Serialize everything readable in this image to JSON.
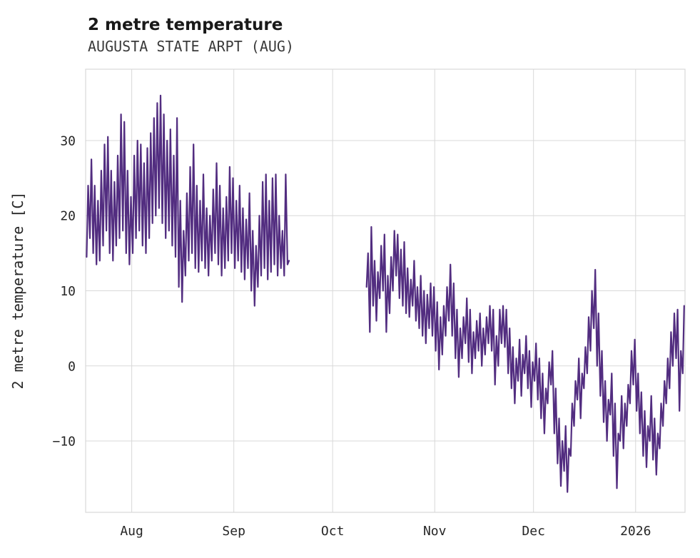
{
  "chart_data": {
    "type": "line",
    "title": "2 metre temperature",
    "subtitle": "AUGUSTA STATE ARPT (AUG)",
    "ylabel": "2 metre temperature [C]",
    "line_color": "#522d80",
    "grid_color": "#d8d8d8",
    "background": "#ffffff",
    "legend": "none",
    "grid": "on",
    "xlim": [
      0,
      182
    ],
    "ylim": [
      -19.5,
      39.5
    ],
    "x_ticks": [
      {
        "x": 14,
        "label": "Aug"
      },
      {
        "x": 45,
        "label": "Sep"
      },
      {
        "x": 75,
        "label": "Oct"
      },
      {
        "x": 106,
        "label": "Nov"
      },
      {
        "x": 136,
        "label": "Dec"
      },
      {
        "x": 167,
        "label": "2026"
      }
    ],
    "y_ticks": [
      {
        "v": 30,
        "label": "30"
      },
      {
        "v": 20,
        "label": "20"
      },
      {
        "v": 10,
        "label": "10"
      },
      {
        "v": 0,
        "label": "0"
      },
      {
        "v": -10,
        "label": "−10"
      }
    ],
    "segments": [
      {
        "start_day": 0,
        "daily_min_max": [
          [
            14.5,
            24
          ],
          [
            17,
            27.5
          ],
          [
            15,
            24
          ],
          [
            13.5,
            22
          ],
          [
            14,
            26
          ],
          [
            16,
            29.5
          ],
          [
            18,
            30.5
          ],
          [
            15,
            26
          ],
          [
            14,
            24.5
          ],
          [
            16,
            28
          ],
          [
            17,
            33.5
          ],
          [
            18,
            32.5
          ],
          [
            15,
            26
          ],
          [
            13.5,
            22.5
          ],
          [
            15,
            28
          ],
          [
            17,
            30
          ],
          [
            18,
            29.5
          ],
          [
            16,
            27
          ],
          [
            15,
            29
          ],
          [
            17,
            31
          ],
          [
            19,
            33
          ],
          [
            20,
            35
          ],
          [
            21,
            36
          ],
          [
            19,
            33.5
          ],
          [
            17,
            30
          ],
          [
            18,
            31.5
          ],
          [
            16,
            28
          ],
          [
            14.5,
            33
          ],
          [
            10.5,
            22
          ],
          [
            8.5,
            18
          ],
          [
            12,
            23
          ],
          [
            14,
            26.5
          ],
          [
            15,
            29.5
          ],
          [
            13,
            24
          ],
          [
            12.5,
            22
          ],
          [
            14,
            25.5
          ],
          [
            13,
            21
          ],
          [
            12,
            20
          ],
          [
            14,
            23.5
          ],
          [
            15,
            27
          ],
          [
            13.5,
            24
          ],
          [
            12,
            21
          ],
          [
            13,
            22.5
          ],
          [
            14,
            26.5
          ],
          [
            15,
            25
          ],
          [
            13,
            22
          ],
          [
            14,
            24
          ],
          [
            12.5,
            21
          ],
          [
            11.5,
            19.5
          ],
          [
            13,
            23
          ],
          [
            10,
            18
          ],
          [
            8,
            16
          ],
          [
            10.5,
            20
          ],
          [
            12,
            24.5
          ],
          [
            13,
            25.5
          ],
          [
            11.5,
            22
          ],
          [
            12.5,
            25
          ],
          [
            13.5,
            25.5
          ],
          [
            12,
            20
          ],
          [
            13,
            18
          ],
          [
            12,
            25.5
          ],
          [
            13.5,
            14
          ]
        ]
      },
      {
        "start_day": 85,
        "daily_min_max": [
          [
            10.5,
            15
          ],
          [
            4.5,
            18.5
          ],
          [
            8,
            14
          ],
          [
            6,
            12.5
          ],
          [
            9,
            16
          ],
          [
            10,
            17.5
          ],
          [
            4.5,
            12
          ],
          [
            7,
            14.5
          ],
          [
            10,
            18
          ],
          [
            12,
            17.5
          ],
          [
            9,
            15.5
          ],
          [
            8,
            16.5
          ],
          [
            7,
            13
          ],
          [
            6.5,
            11.5
          ],
          [
            8,
            14
          ],
          [
            6,
            10.5
          ],
          [
            5,
            12
          ],
          [
            4,
            10
          ],
          [
            3,
            9.5
          ],
          [
            5,
            11
          ],
          [
            4,
            10.5
          ],
          [
            2,
            8.5
          ],
          [
            -0.5,
            6.5
          ],
          [
            1.5,
            8
          ],
          [
            4,
            10.5
          ],
          [
            6,
            13.5
          ],
          [
            4,
            11
          ],
          [
            1,
            7.5
          ],
          [
            -1.5,
            5
          ],
          [
            1,
            6.5
          ],
          [
            3,
            9
          ],
          [
            0.5,
            7.5
          ],
          [
            -1,
            4.5
          ],
          [
            1,
            6
          ],
          [
            2,
            7
          ],
          [
            0,
            5
          ],
          [
            1.5,
            6.5
          ],
          [
            3,
            8
          ],
          [
            2,
            7.5
          ],
          [
            -2.5,
            4
          ],
          [
            0,
            7.5
          ],
          [
            3,
            8
          ],
          [
            2.5,
            7.5
          ],
          [
            -1,
            5
          ],
          [
            -3,
            2.5
          ],
          [
            -5,
            1
          ],
          [
            -2,
            3.5
          ],
          [
            -4,
            1.5
          ],
          [
            -1,
            4
          ],
          [
            -3,
            2
          ],
          [
            -5.5,
            0.5
          ],
          [
            -2,
            3
          ],
          [
            -4.5,
            1
          ],
          [
            -7,
            -1
          ],
          [
            -9,
            -3
          ],
          [
            -5,
            0.5
          ],
          [
            -2.5,
            2
          ],
          [
            -9,
            -3
          ],
          [
            -13,
            -7
          ],
          [
            -16,
            -10
          ],
          [
            -14,
            -8
          ],
          [
            -16.8,
            -11
          ],
          [
            -12,
            -5
          ],
          [
            -8,
            -2
          ],
          [
            -4.5,
            1
          ],
          [
            -7,
            -1
          ],
          [
            -3,
            2.5
          ],
          [
            -1,
            6.5
          ],
          [
            2,
            10
          ],
          [
            5,
            12.8
          ],
          [
            0,
            7
          ],
          [
            -4,
            2
          ],
          [
            -7.5,
            -2
          ],
          [
            -10,
            -4.5
          ],
          [
            -6.5,
            -1
          ],
          [
            -12,
            -5
          ],
          [
            -16.3,
            -9
          ],
          [
            -10,
            -4
          ],
          [
            -11,
            -5
          ],
          [
            -8,
            -2.5
          ],
          [
            -5,
            2
          ],
          [
            -2.5,
            3.5
          ],
          [
            -6,
            -1
          ],
          [
            -9,
            -3.5
          ],
          [
            -12,
            -6
          ],
          [
            -13.5,
            -8
          ],
          [
            -10,
            -4
          ],
          [
            -12.5,
            -7
          ],
          [
            -14.5,
            -9
          ],
          [
            -11,
            -5
          ],
          [
            -8,
            -2
          ],
          [
            -5,
            1
          ],
          [
            -3,
            4.5
          ],
          [
            0,
            7
          ],
          [
            1,
            7.5
          ],
          [
            -6,
            2
          ],
          [
            -1,
            8
          ]
        ]
      }
    ]
  }
}
